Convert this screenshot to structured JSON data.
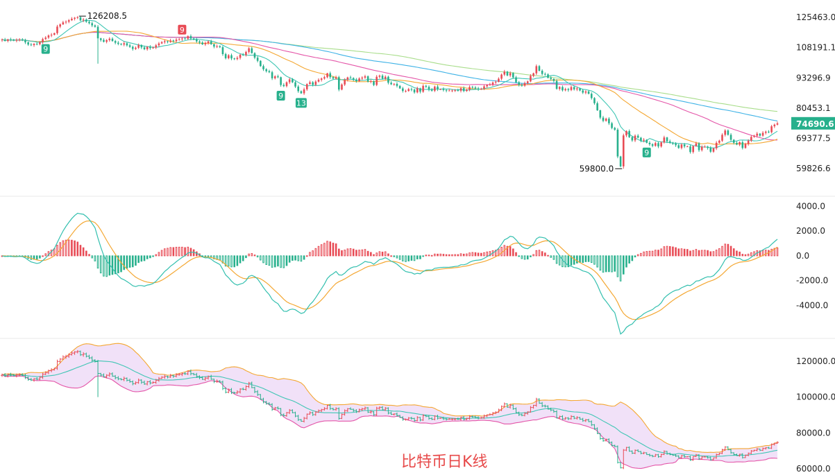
{
  "caption": "比特币日K线",
  "colors": {
    "up": "#e84b55",
    "down": "#27b08c",
    "ma_short": "#3fc6b4",
    "ma_mid": "#f4a732",
    "ma_long1": "#e455a8",
    "ma_long2": "#3db2e6",
    "ma_long3": "#a8dd8a",
    "dif": "#32bfae",
    "dea": "#f4a732",
    "bb_upper": "#f4a732",
    "bb_mid": "#3fc6b4",
    "bb_lower": "#e455a8",
    "bb_fill": "#eedcf7",
    "price_tag": "#27b08c",
    "marker_red": "#e84b55",
    "marker_green": "#27b08c"
  },
  "chart_data": [
    {
      "type": "candlestick",
      "panel": "price",
      "y_axis_ticks": [
        "125463.0",
        "108191.1",
        "93296.9",
        "80453.1",
        "69377.5",
        "59826.6"
      ],
      "ylim": [
        55000,
        132000
      ],
      "y_scale": "log",
      "current_price": "74690.6",
      "annotations": [
        {
          "text": "126208.5",
          "type": "high",
          "value": 126208.5
        },
        {
          "text": "59800.0",
          "type": "low",
          "value": 59800.0
        }
      ],
      "markers": [
        {
          "text": "9",
          "color": "green",
          "index": 15
        },
        {
          "text": "9",
          "color": "red",
          "index": 62
        },
        {
          "text": "9",
          "color": "green",
          "index": 96
        },
        {
          "text": "13",
          "color": "green",
          "index": 103
        },
        {
          "text": "9",
          "color": "green",
          "index": 222
        }
      ],
      "closes": [
        112500,
        111800,
        112600,
        112400,
        111900,
        112300,
        112600,
        112100,
        111000,
        109800,
        109500,
        110200,
        110000,
        111100,
        112800,
        113600,
        114800,
        115200,
        116100,
        119900,
        121200,
        122400,
        122800,
        123700,
        124600,
        125200,
        125500,
        123600,
        124100,
        122800,
        121900,
        120600,
        119800,
        113200,
        112300,
        111300,
        112200,
        113000,
        111700,
        110800,
        110200,
        109800,
        110500,
        109400,
        108600,
        107500,
        108100,
        109500,
        108300,
        107300,
        108600,
        107900,
        108200,
        109400,
        110400,
        111100,
        111600,
        111200,
        112000,
        111700,
        112500,
        112700,
        113100,
        113000,
        114400,
        113100,
        112600,
        111500,
        110900,
        109900,
        110600,
        111500,
        110000,
        108700,
        108900,
        108400,
        104800,
        102700,
        104200,
        102600,
        102300,
        102900,
        104500,
        104300,
        105900,
        107800,
        105300,
        103000,
        101400,
        98800,
        97300,
        96400,
        95900,
        93100,
        94000,
        93600,
        90100,
        89600,
        91300,
        92600,
        91300,
        89400,
        87400,
        86500,
        88200,
        90500,
        91300,
        90200,
        91600,
        92400,
        93000,
        93600,
        95400,
        93600,
        93000,
        93600,
        88100,
        90300,
        92400,
        93500,
        93200,
        92500,
        91800,
        93000,
        93400,
        94000,
        91600,
        91800,
        90100,
        93800,
        94300,
        92900,
        93800,
        91100,
        90400,
        90600,
        89700,
        88600,
        87500,
        87500,
        88300,
        88100,
        86900,
        88600,
        87200,
        89700,
        89300,
        88100,
        87600,
        89400,
        88200,
        88300,
        87900,
        87600,
        87700,
        87700,
        87800,
        87600,
        88700,
        87500,
        88100,
        89200,
        89000,
        88600,
        88300,
        88500,
        89500,
        90100,
        90300,
        91200,
        91500,
        92900,
        94800,
        96200,
        94400,
        95500,
        93500,
        91300,
        90200,
        89800,
        90900,
        91700,
        94200,
        95400,
        98800,
        96600,
        95100,
        94900,
        93300,
        92800,
        91900,
        88400,
        89200,
        87800,
        88300,
        87900,
        89200,
        88200,
        88600,
        87700,
        86800,
        87300,
        86300,
        84500,
        82400,
        79600,
        76800,
        75600,
        76400,
        74700,
        73000,
        72400,
        63500,
        60500,
        70400,
        71900,
        69800,
        68700,
        70300,
        69600,
        68600,
        68900,
        67900,
        67400,
        66900,
        67800,
        66700,
        68000,
        69700,
        68400,
        67900,
        67600,
        67100,
        66200,
        67300,
        66700,
        66700,
        64900,
        66800,
        67700,
        65500,
        66600,
        66600,
        66200,
        65000,
        66100,
        67900,
        68600,
        70600,
        72100,
        70600,
        68900,
        67900,
        67300,
        68100,
        66200,
        67500,
        68600,
        69900,
        70300,
        71000,
        70300,
        71300,
        71700,
        71500,
        73600,
        74200,
        74690
      ]
    },
    {
      "type": "macd",
      "panel": "macd",
      "y_axis_ticks": [
        "4000.0",
        "2000.0",
        "0.0",
        "-2000.0",
        "-4000.0"
      ],
      "ylim": [
        -6100,
        4300
      ]
    },
    {
      "type": "bollinger",
      "panel": "bollinger",
      "y_axis_ticks": [
        "120000.0",
        "100000.0",
        "80000.0",
        "60000.0"
      ],
      "ylim": [
        56500,
        132000
      ]
    }
  ]
}
